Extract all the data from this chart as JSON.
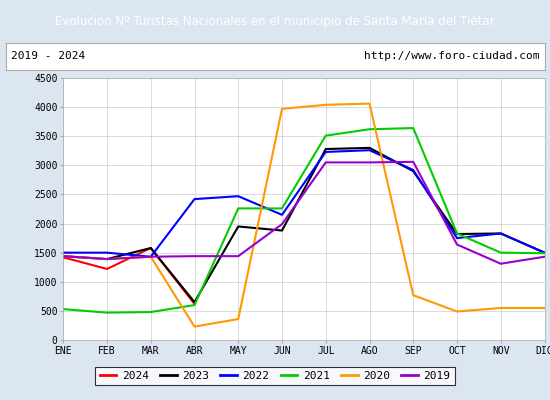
{
  "title": "Evolucion Nº Turistas Nacionales en el municipio de Santa María del Tiétar",
  "subtitle_left": "2019 - 2024",
  "subtitle_right": "http://www.foro-ciudad.com",
  "title_bg_color": "#4472c4",
  "title_text_color": "#ffffff",
  "months": [
    "ENE",
    "FEB",
    "MAR",
    "ABR",
    "MAY",
    "JUN",
    "JUL",
    "AGO",
    "SEP",
    "OCT",
    "NOV",
    "DIC"
  ],
  "ylim": [
    0,
    4500
  ],
  "yticks": [
    0,
    500,
    1000,
    1500,
    2000,
    2500,
    3000,
    3500,
    4000,
    4500
  ],
  "series": {
    "2024": {
      "color": "#ff0000",
      "data": [
        1420,
        1220,
        1580,
        620,
        null,
        null,
        null,
        null,
        null,
        null,
        null,
        null
      ]
    },
    "2023": {
      "color": "#000000",
      "data": [
        1440,
        1390,
        1580,
        650,
        1950,
        1880,
        3280,
        3300,
        2900,
        1820,
        1830,
        1500
      ]
    },
    "2022": {
      "color": "#0000ff",
      "data": [
        1500,
        1500,
        1430,
        2420,
        2470,
        2150,
        3230,
        3260,
        2920,
        1750,
        1830,
        1500
      ]
    },
    "2021": {
      "color": "#00cc00",
      "data": [
        530,
        470,
        480,
        600,
        2260,
        2260,
        3510,
        3620,
        3640,
        1830,
        1500,
        1490
      ]
    },
    "2020": {
      "color": "#ff9900",
      "data": [
        1440,
        1390,
        1430,
        230,
        360,
        3970,
        4040,
        4060,
        770,
        490,
        550,
        550
      ]
    },
    "2019": {
      "color": "#9900cc",
      "data": [
        1440,
        1390,
        1430,
        1440,
        1440,
        1990,
        3050,
        3050,
        3060,
        1640,
        1310,
        1430
      ]
    }
  },
  "legend_order": [
    "2024",
    "2023",
    "2022",
    "2021",
    "2020",
    "2019"
  ],
  "plot_bg_color": "#ffffff",
  "outer_bg_color": "#dce6f1",
  "grid_color": "#cccccc",
  "figsize": [
    5.5,
    4.0
  ],
  "dpi": 100
}
